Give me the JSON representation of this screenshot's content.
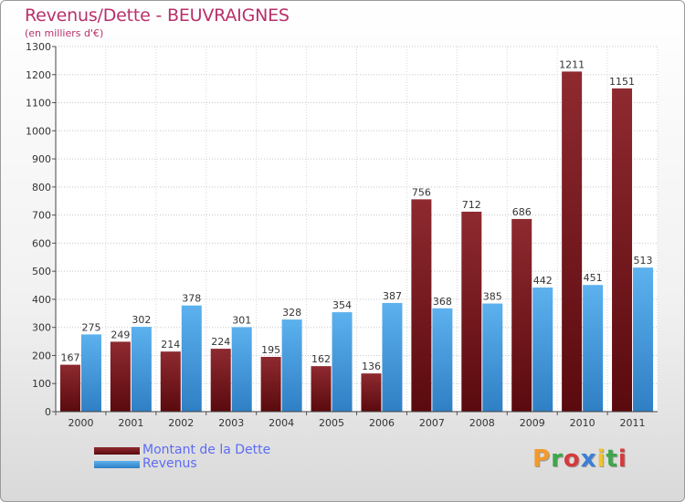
{
  "title": "Revenus/Dette - BEUVRAIGNES",
  "subtitle": "(en milliers d'€)",
  "logo": "Proxiti",
  "colors": {
    "title": "#b8306a",
    "dette": "#7a1b1f",
    "revenus": "#4aa3e6",
    "legend_text": "#5c6cf2",
    "logo_letters": [
      "#f29a2e",
      "#3fa64a",
      "#d63a3a",
      "#3b7fd6",
      "#f2c12e",
      "#3fa64a",
      "#d63a3a"
    ]
  },
  "chart_data": {
    "type": "bar",
    "categories": [
      "2000",
      "2001",
      "2002",
      "2003",
      "2004",
      "2005",
      "2006",
      "2007",
      "2008",
      "2009",
      "2010",
      "2011"
    ],
    "series": [
      {
        "name": "Montant de la Dette",
        "values": [
          167,
          249,
          214,
          224,
          195,
          162,
          136,
          756,
          712,
          686,
          1211,
          1151
        ]
      },
      {
        "name": "Revenus",
        "values": [
          275,
          302,
          378,
          301,
          328,
          354,
          387,
          368,
          385,
          442,
          451,
          513
        ]
      }
    ],
    "ylim": [
      0,
      1300
    ],
    "yticks": [
      0,
      100,
      200,
      300,
      400,
      500,
      600,
      700,
      800,
      900,
      1000,
      1100,
      1200,
      1300
    ],
    "grid": true,
    "legend_position": "bottom-left"
  }
}
